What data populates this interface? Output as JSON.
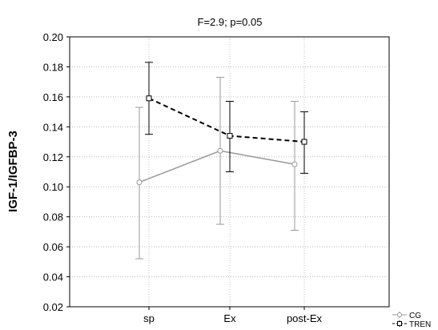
{
  "chart_data": {
    "type": "line",
    "title": "F=2.9; p=0.05",
    "ylabel": "IGF-1/IGFBP-3",
    "xlabel": "",
    "categories": [
      "sp",
      "Ex",
      "post-Ex"
    ],
    "ylim": [
      0.02,
      0.2
    ],
    "yticks": [
      "0.02",
      "0.04",
      "0.06",
      "0.08",
      "0.10",
      "0.12",
      "0.14",
      "0.16",
      "0.18",
      "0.20"
    ],
    "grid": true,
    "legend_position": "bottom-right",
    "series": [
      {
        "name": "CG",
        "color": "#999999",
        "line_style": "solid",
        "marker": "circle",
        "values": [
          0.103,
          0.124,
          0.115
        ],
        "error_low": [
          0.052,
          0.075,
          0.071
        ],
        "error_high": [
          0.153,
          0.173,
          0.157
        ]
      },
      {
        "name": "TREN",
        "color": "#000000",
        "line_style": "dashed",
        "marker": "square",
        "values": [
          0.159,
          0.134,
          0.13
        ],
        "error_low": [
          0.135,
          0.11,
          0.109
        ],
        "error_high": [
          0.183,
          0.157,
          0.15
        ]
      }
    ]
  }
}
